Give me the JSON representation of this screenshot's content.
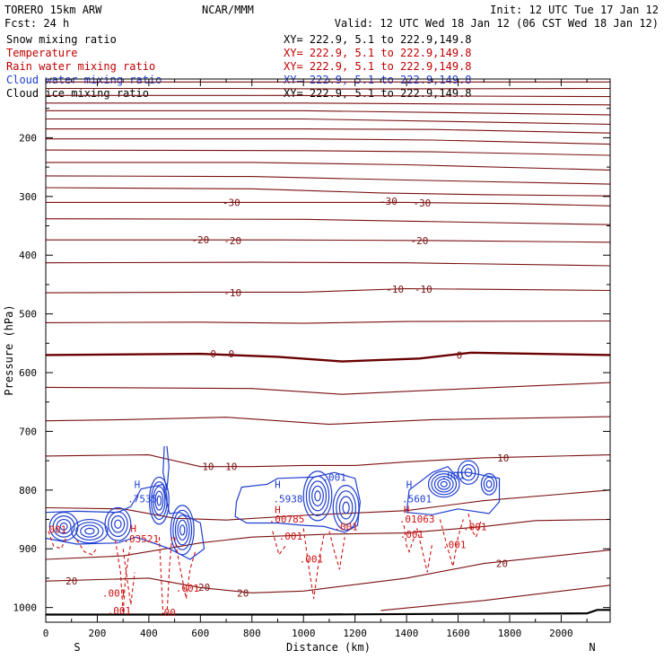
{
  "header": {
    "model": "TORERO  15km ARW",
    "center": "NCAR/MMM",
    "init": "Init: 12 UTC Tue 17 Jan 12",
    "fcst": "Fcst:   24 h",
    "valid": "Valid: 12 UTC Wed 18 Jan 12 (06 CST Wed 18 Jan 12)"
  },
  "legend": [
    {
      "label": "Snow mixing ratio",
      "color": "#000000",
      "xs": "XY= 222.9,  5.1 to 222.9,149.8"
    },
    {
      "label": "Temperature",
      "color": "#c00000",
      "xs": "XY= 222.9,  5.1 to 222.9,149.8"
    },
    {
      "label": "Rain water mixing ratio",
      "color": "#c00000",
      "xs": "XY= 222.9,  5.1 to 222.9,149.8"
    },
    {
      "label": "Cloud water mixing ratio",
      "color": "#1f3fd0",
      "xs": "XY= 222.9,  5.1 to 222.9,149.8"
    },
    {
      "label": "Cloud ice mixing ratio",
      "color": "#000000",
      "xs": "XY= 222.9,  5.1 to 222.9,149.8"
    }
  ],
  "colors": {
    "temperature": "#7a1010",
    "freezing": "#6a0000",
    "rain": "#d01010",
    "cloud_water": "#1f3fd0",
    "terrain": "#000000"
  },
  "chart_data": {
    "type": "line",
    "xlabel": "Distance (km)",
    "ylabel": "Pressure (hPa)",
    "xlim": [
      0,
      2190
    ],
    "ylim": [
      1025,
      100
    ],
    "x_ticks": [
      0,
      200,
      400,
      600,
      800,
      1000,
      1200,
      1400,
      1600,
      1800,
      2000
    ],
    "y_ticks": [
      200,
      300,
      400,
      500,
      600,
      700,
      800,
      900,
      1000
    ],
    "x_end_labels": {
      "left": "S",
      "right": "N"
    },
    "temperature_labels": [
      {
        "text": "-30",
        "x": 720,
        "p": 310
      },
      {
        "text": "-30",
        "x": 1330,
        "p": 308
      },
      {
        "text": "-30",
        "x": 1460,
        "p": 311
      },
      {
        "text": "-20",
        "x": 600,
        "p": 374
      },
      {
        "text": "-20",
        "x": 725,
        "p": 375
      },
      {
        "text": "-20",
        "x": 1450,
        "p": 375
      },
      {
        "text": "-10",
        "x": 725,
        "p": 464
      },
      {
        "text": "-10",
        "x": 1355,
        "p": 458
      },
      {
        "text": "-10",
        "x": 1465,
        "p": 458
      },
      {
        "text": "0",
        "x": 650,
        "p": 568
      },
      {
        "text": "0",
        "x": 720,
        "p": 568
      },
      {
        "text": "0",
        "x": 1605,
        "p": 570
      },
      {
        "text": "10",
        "x": 630,
        "p": 760
      },
      {
        "text": "10",
        "x": 720,
        "p": 760
      },
      {
        "text": "10",
        "x": 1775,
        "p": 745
      },
      {
        "text": "20",
        "x": 100,
        "p": 955
      },
      {
        "text": "20",
        "x": 615,
        "p": 965
      },
      {
        "text": "20",
        "x": 765,
        "p": 975
      },
      {
        "text": "20",
        "x": 1770,
        "p": 925
      }
    ],
    "cloud_labels": [
      {
        "text": "H",
        "x": 355,
        "p": 790
      },
      {
        "text": ".7535",
        "x": 375,
        "p": 815
      },
      {
        "text": "H",
        "x": 900,
        "p": 790
      },
      {
        "text": ".5938",
        "x": 940,
        "p": 815
      },
      {
        "text": ".001",
        "x": 1120,
        "p": 778
      },
      {
        "text": "H",
        "x": 1410,
        "p": 790
      },
      {
        "text": ".5601",
        "x": 1440,
        "p": 815
      },
      {
        "text": ".001",
        "x": 1580,
        "p": 775
      }
    ],
    "rain_labels": [
      {
        "text": "H",
        "x": 340,
        "p": 865
      },
      {
        "text": ".03521",
        "x": 370,
        "p": 883
      },
      {
        "text": "H",
        "x": 900,
        "p": 833
      },
      {
        "text": ".00785",
        "x": 935,
        "p": 849
      },
      {
        "text": "H",
        "x": 1400,
        "p": 833
      },
      {
        "text": ".01063",
        "x": 1440,
        "p": 849
      },
      {
        "text": ".001",
        "x": 35,
        "p": 867
      },
      {
        "text": ".001",
        "x": 950,
        "p": 878
      },
      {
        "text": ".001",
        "x": 1030,
        "p": 917
      },
      {
        "text": ".001",
        "x": 1165,
        "p": 862
      },
      {
        "text": ".001",
        "x": 1420,
        "p": 875
      },
      {
        "text": ".001",
        "x": 1585,
        "p": 893
      },
      {
        "text": ".001",
        "x": 1665,
        "p": 862
      },
      {
        "text": ".001",
        "x": 265,
        "p": 975
      },
      {
        "text": ".001",
        "x": 550,
        "p": 967
      },
      {
        "text": ".001",
        "x": 285,
        "p": 1005
      },
      {
        "text": ".00",
        "x": 470,
        "p": 1008
      }
    ]
  }
}
